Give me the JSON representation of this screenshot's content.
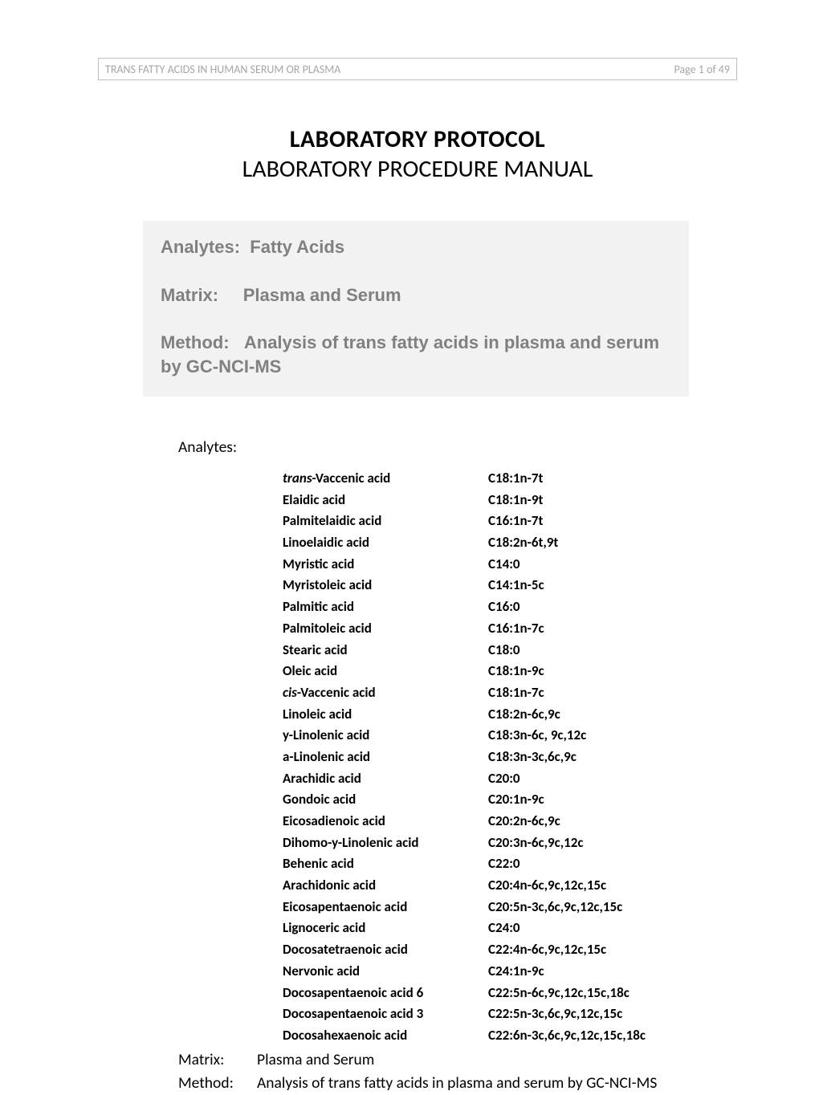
{
  "header": {
    "left": "TRANS FATTY ACIDS IN HUMAN SERUM OR PLASMA",
    "right": "Page 1 of 49"
  },
  "title": {
    "main": "LABORATORY PROTOCOL",
    "sub": "LABORATORY PROCEDURE MANUAL"
  },
  "summary": {
    "analytes_label": "Analytes:",
    "analytes_value": "Fatty Acids",
    "matrix_label": "Matrix:",
    "matrix_value": "Plasma and Serum",
    "method_label": "Method:",
    "method_value": "Analysis of trans fatty acids in plasma and serum by GC-NCI-MS"
  },
  "analytes_section_label": "Analytes:",
  "analytes": [
    {
      "prefix": "trans",
      "name": "-Vaccenic acid",
      "code": "C18:1n-7t"
    },
    {
      "prefix": "",
      "name": "Elaidic acid",
      "code": "C18:1n-9t"
    },
    {
      "prefix": "",
      "name": "Palmitelaidic acid",
      "code": "C16:1n-7t"
    },
    {
      "prefix": "",
      "name": "Linoelaidic acid",
      "code": "C18:2n-6t,9t"
    },
    {
      "prefix": "",
      "name": "Myristic acid",
      "code": "C14:0"
    },
    {
      "prefix": "",
      "name": "Myristoleic acid",
      "code": "C14:1n-5c"
    },
    {
      "prefix": "",
      "name": "Palmitic acid",
      "code": "C16:0"
    },
    {
      "prefix": "",
      "name": "Palmitoleic acid",
      "code": "C16:1n-7c"
    },
    {
      "prefix": "",
      "name": "Stearic acid",
      "code": "C18:0"
    },
    {
      "prefix": "",
      "name": "Oleic acid",
      "code": "C18:1n-9c"
    },
    {
      "prefix": "cis",
      "name": "-Vaccenic acid",
      "code": "C18:1n-7c"
    },
    {
      "prefix": "",
      "name": "Linoleic acid",
      "code": "C18:2n-6c,9c"
    },
    {
      "prefix": "",
      "name": "y-Linolenic acid",
      "code": "C18:3n-6c, 9c,12c"
    },
    {
      "prefix": "",
      "name": "a-Linolenic acid",
      "code": "C18:3n-3c,6c,9c"
    },
    {
      "prefix": "",
      "name": "Arachidic acid",
      "code": "C20:0"
    },
    {
      "prefix": "",
      "name": "Gondoic acid",
      "code": "C20:1n-9c"
    },
    {
      "prefix": "",
      "name": "Eicosadienoic acid",
      "code": "C20:2n-6c,9c"
    },
    {
      "prefix": "",
      "name": "Dihomo-y-Linolenic acid",
      "code": "C20:3n-6c,9c,12c"
    },
    {
      "prefix": "",
      "name": "Behenic acid",
      "code": "C22:0"
    },
    {
      "prefix": "",
      "name": "Arachidonic acid",
      "code": "C20:4n-6c,9c,12c,15c"
    },
    {
      "prefix": "",
      "name": "Eicosapentaenoic acid",
      "code": "C20:5n-3c,6c,9c,12c,15c"
    },
    {
      "prefix": "",
      "name": "Lignoceric acid",
      "code": "C24:0"
    },
    {
      "prefix": "",
      "name": "Docosatetraenoic acid",
      "code": "C22:4n-6c,9c,12c,15c"
    },
    {
      "prefix": "",
      "name": "Nervonic acid",
      "code": "C24:1n-9c"
    },
    {
      "prefix": "",
      "name": "Docosapentaenoic acid 6",
      "code": "C22:5n-6c,9c,12c,15c,18c"
    },
    {
      "prefix": "",
      "name": "Docosapentaenoic acid 3",
      "code": "C22:5n-3c,6c,9c,12c,15c"
    },
    {
      "prefix": "",
      "name": "Docosahexaenoic acid",
      "code": "C22:6n-3c,6c,9c,12c,15c,18c"
    }
  ],
  "meta": {
    "matrix_label": "Matrix:",
    "matrix_value": "Plasma and Serum",
    "method_label": "Method:",
    "method_value": "Analysis of trans fatty acids in plasma and serum by GC-NCI-MS"
  },
  "colors": {
    "header_border": "#bfbfbf",
    "header_text": "#a6a6a6",
    "summary_bg": "#f2f2f2",
    "summary_text": "#808080",
    "body_text": "#000000",
    "page_bg": "#ffffff"
  }
}
